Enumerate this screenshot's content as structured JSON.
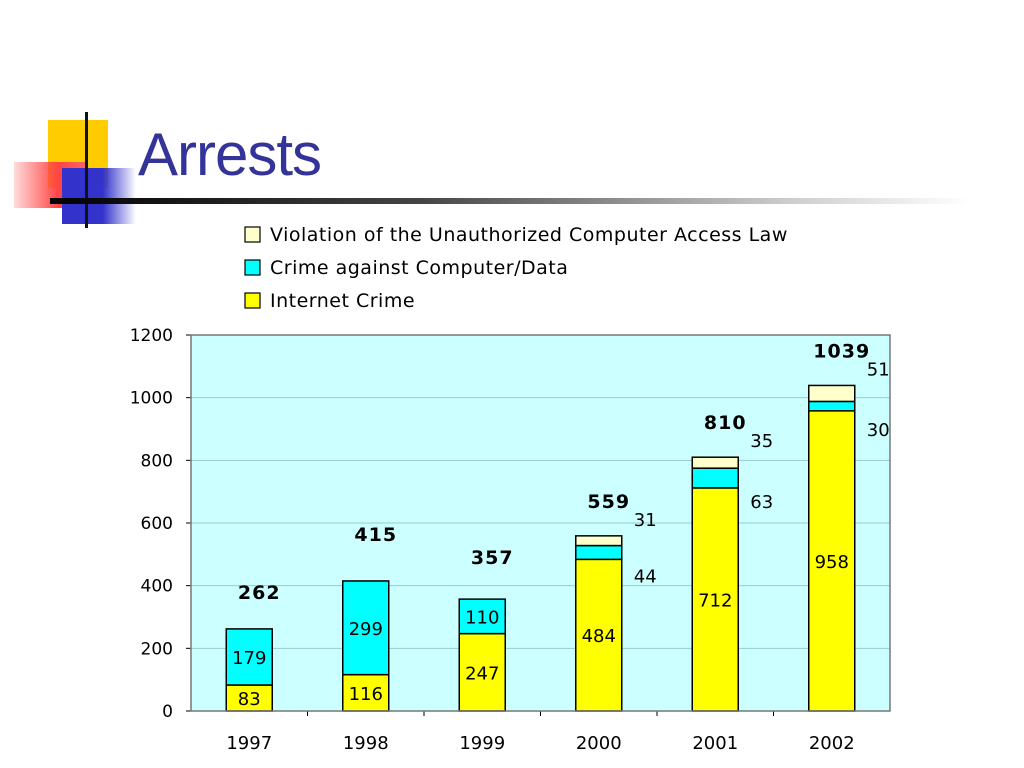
{
  "slide": {
    "title": "Arrests"
  },
  "chart_data": {
    "type": "bar",
    "stacked": true,
    "categories": [
      "1997",
      "1998",
      "1999",
      "2000",
      "2001",
      "2002"
    ],
    "series": [
      {
        "name": "Internet Crime",
        "values": [
          83,
          116,
          247,
          484,
          712,
          958
        ],
        "color": "#ffff00"
      },
      {
        "name": "Crime against Computer/Data",
        "values": [
          179,
          299,
          110,
          44,
          63,
          30
        ],
        "color": "#00ffff"
      },
      {
        "name": "Violation of the Unauthorized Computer Access Law",
        "values": [
          0,
          0,
          0,
          31,
          35,
          51
        ],
        "color": "#ffffcc"
      }
    ],
    "totals": [
      262,
      415,
      357,
      559,
      810,
      1039
    ],
    "ylim": [
      0,
      1200
    ],
    "yticks": [
      0,
      200,
      400,
      600,
      800,
      1000,
      1200
    ],
    "grid": true,
    "legend_position": "top",
    "plot_background": "#ccffff"
  }
}
